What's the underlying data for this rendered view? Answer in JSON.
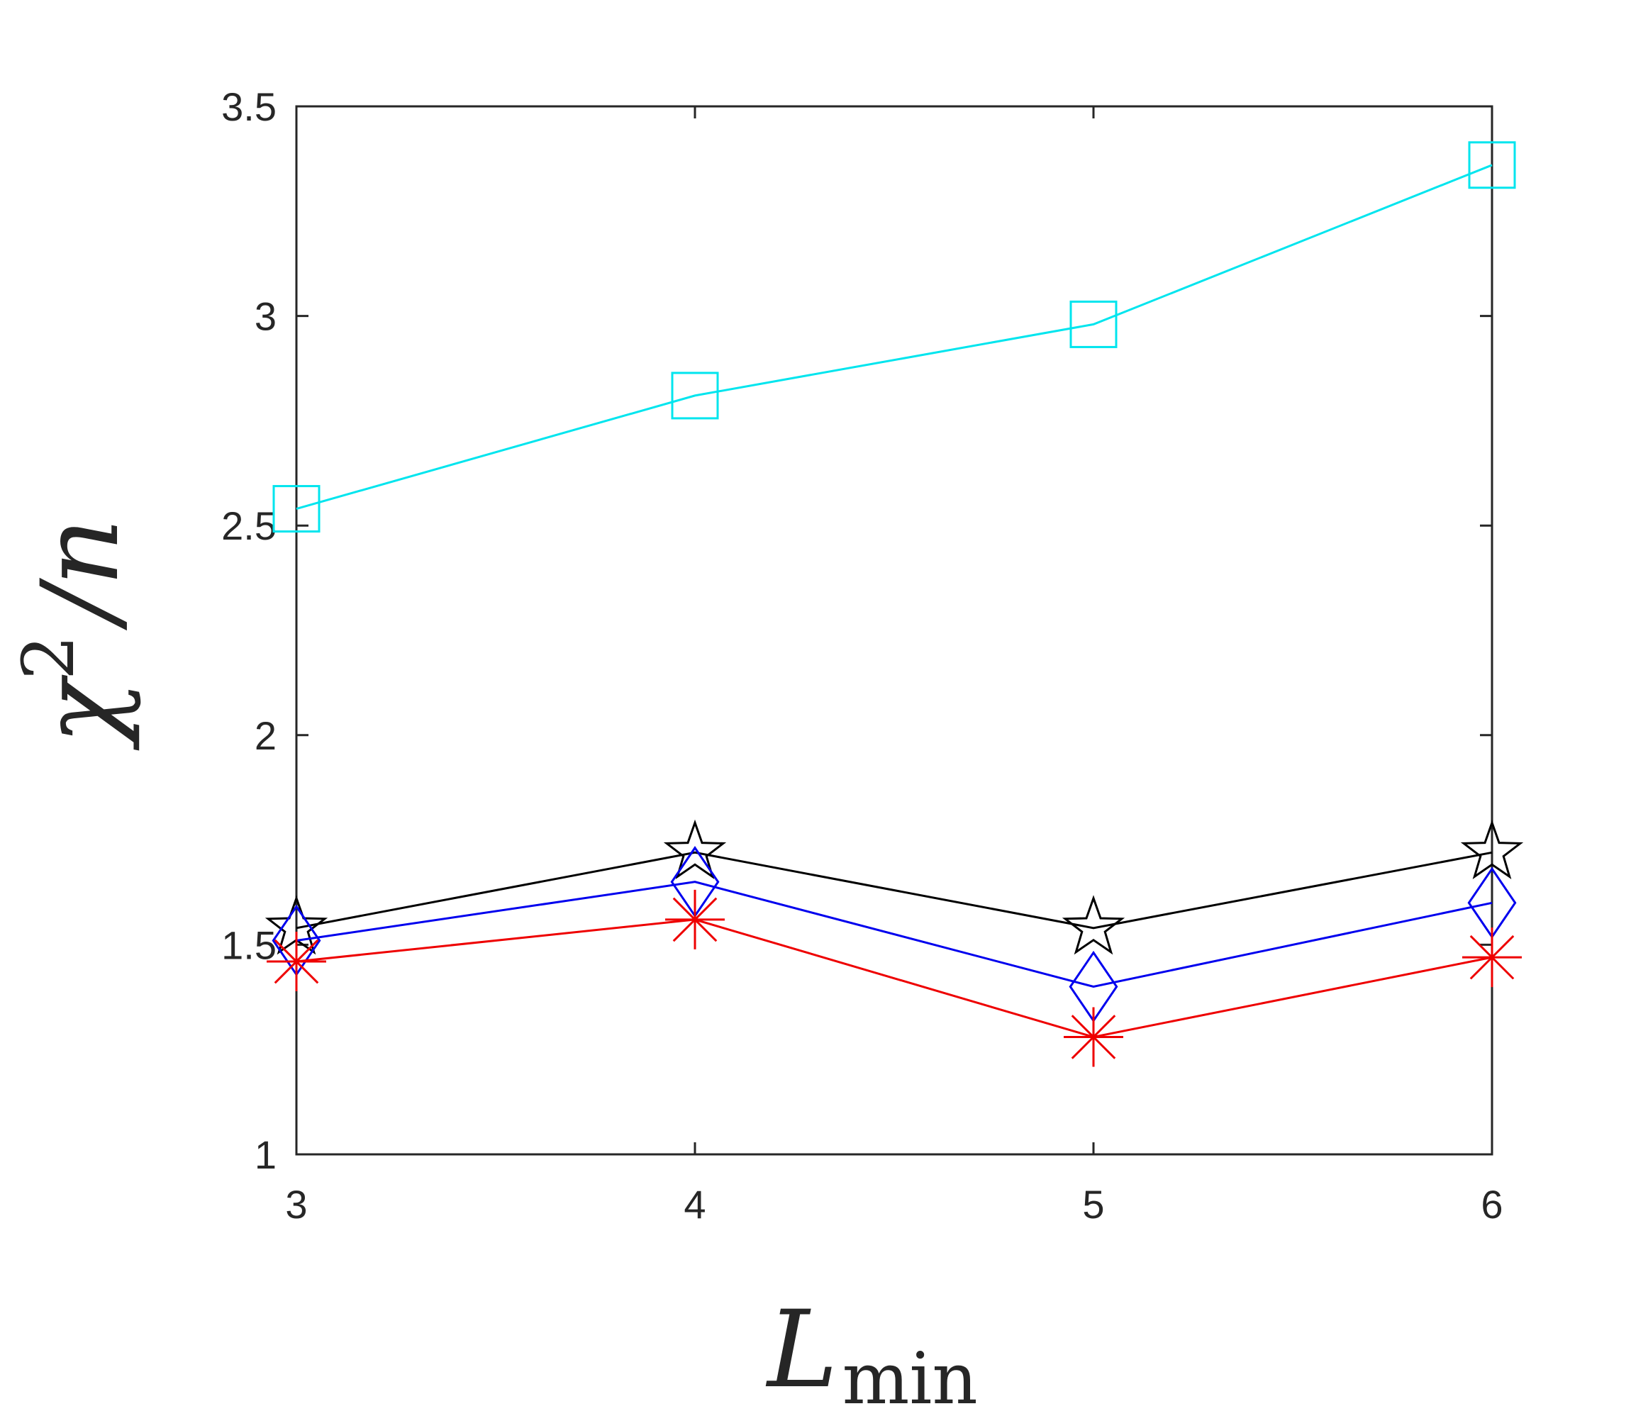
{
  "chart_data": {
    "type": "line",
    "xlabel": {
      "main": "L",
      "sub": "min"
    },
    "ylabel": {
      "main": "χ",
      "sup": "2",
      "rest": "/n"
    },
    "xlim": [
      3,
      6
    ],
    "ylim": [
      1,
      3.5
    ],
    "xticks": [
      3,
      4,
      5,
      6
    ],
    "xtick_labels": [
      "3",
      "4",
      "5",
      "6"
    ],
    "yticks": [
      1,
      1.5,
      2,
      2.5,
      3,
      3.5
    ],
    "ytick_labels": [
      "1",
      "1.5",
      "2",
      "2.5",
      "3",
      "3.5"
    ],
    "grid": false,
    "x": [
      3,
      4,
      5,
      6
    ],
    "series": [
      {
        "name": "cyan-squares",
        "color": "#00e5ee",
        "marker": "square",
        "values": [
          2.54,
          2.81,
          2.98,
          3.36
        ]
      },
      {
        "name": "black-stars",
        "color": "#000000",
        "marker": "star",
        "values": [
          1.54,
          1.72,
          1.54,
          1.72
        ]
      },
      {
        "name": "blue-diamonds",
        "color": "#0000ee",
        "marker": "diamond",
        "values": [
          1.51,
          1.65,
          1.4,
          1.6
        ]
      },
      {
        "name": "red-asterisks",
        "color": "#ee0000",
        "marker": "asterisk",
        "values": [
          1.46,
          1.56,
          1.28,
          1.47
        ]
      }
    ]
  }
}
